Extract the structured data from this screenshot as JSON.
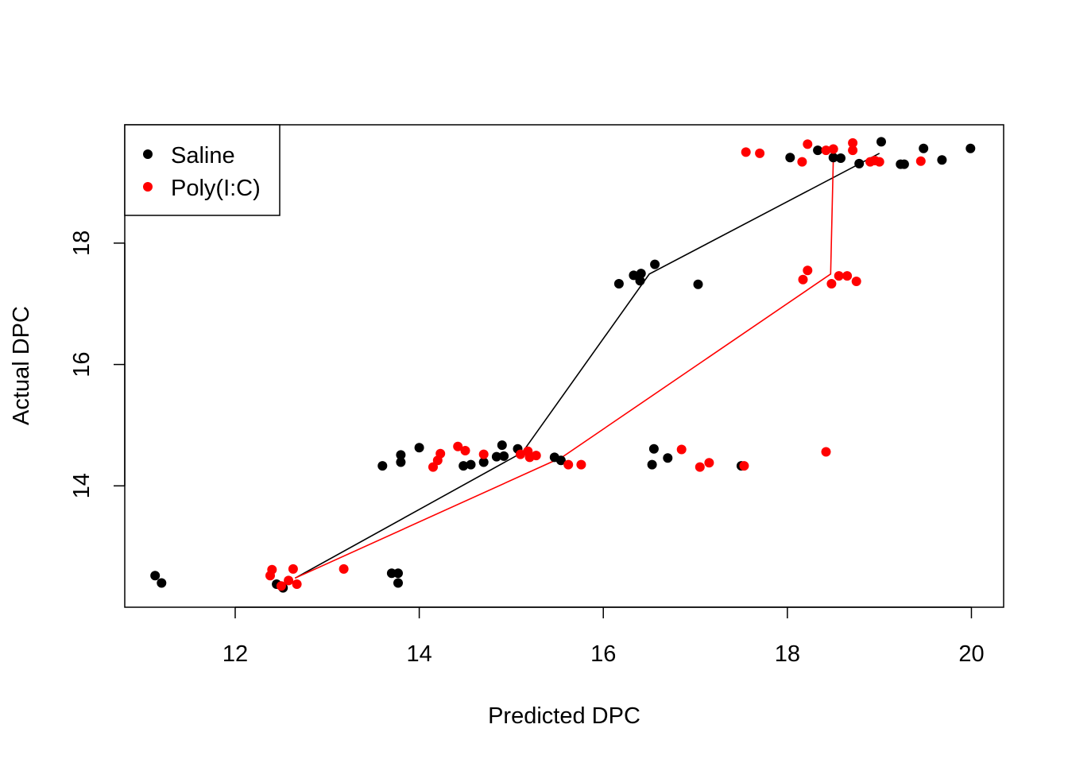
{
  "chart_data": {
    "type": "scatter",
    "title": "",
    "xlabel": "Predicted DPC",
    "ylabel": "Actual DPC",
    "xlim": [
      10.8,
      20.35
    ],
    "ylim": [
      12.0,
      19.95
    ],
    "x_ticks": [
      12,
      14,
      16,
      18,
      20
    ],
    "y_ticks": [
      14,
      16,
      18
    ],
    "grid": false,
    "legend": {
      "position": "top-left",
      "entries": [
        {
          "label": "Saline",
          "color": "#000000"
        },
        {
          "label": "Poly(I:C)",
          "color": "#ff0000"
        }
      ]
    },
    "series": [
      {
        "name": "Saline",
        "color": "#000000",
        "points": [
          [
            11.13,
            12.52
          ],
          [
            11.2,
            12.4
          ],
          [
            12.45,
            12.38
          ],
          [
            12.52,
            12.32
          ],
          [
            13.7,
            12.56
          ],
          [
            13.77,
            12.56
          ],
          [
            13.77,
            12.4
          ],
          [
            13.6,
            14.33
          ],
          [
            13.8,
            14.39
          ],
          [
            13.8,
            14.51
          ],
          [
            14.0,
            14.63
          ],
          [
            14.48,
            14.33
          ],
          [
            14.56,
            14.35
          ],
          [
            14.7,
            14.39
          ],
          [
            14.84,
            14.48
          ],
          [
            14.9,
            14.67
          ],
          [
            14.92,
            14.49
          ],
          [
            15.07,
            14.61
          ],
          [
            15.47,
            14.47
          ],
          [
            15.54,
            14.42
          ],
          [
            16.17,
            17.33
          ],
          [
            16.33,
            17.47
          ],
          [
            16.4,
            17.38
          ],
          [
            16.41,
            17.5
          ],
          [
            16.56,
            17.65
          ],
          [
            17.03,
            17.32
          ],
          [
            16.53,
            14.35
          ],
          [
            16.55,
            14.61
          ],
          [
            16.7,
            14.46
          ],
          [
            17.5,
            14.33
          ],
          [
            18.03,
            19.41
          ],
          [
            18.33,
            19.53
          ],
          [
            18.5,
            19.41
          ],
          [
            18.58,
            19.4
          ],
          [
            18.78,
            19.31
          ],
          [
            19.02,
            19.67
          ],
          [
            19.23,
            19.3
          ],
          [
            19.27,
            19.3
          ],
          [
            19.48,
            19.56
          ],
          [
            19.68,
            19.37
          ],
          [
            19.99,
            19.56
          ]
        ],
        "trend": [
          [
            12.65,
            12.48
          ],
          [
            15.12,
            14.55
          ],
          [
            16.5,
            17.49
          ],
          [
            19.0,
            19.48
          ]
        ]
      },
      {
        "name": "Poly(I:C)",
        "color": "#ff0000",
        "points": [
          [
            12.38,
            12.52
          ],
          [
            12.4,
            12.62
          ],
          [
            12.5,
            12.35
          ],
          [
            12.58,
            12.44
          ],
          [
            12.63,
            12.63
          ],
          [
            12.67,
            12.38
          ],
          [
            13.18,
            12.63
          ],
          [
            14.15,
            14.31
          ],
          [
            14.2,
            14.42
          ],
          [
            14.23,
            14.53
          ],
          [
            14.42,
            14.65
          ],
          [
            14.5,
            14.58
          ],
          [
            14.7,
            14.52
          ],
          [
            15.1,
            14.52
          ],
          [
            15.18,
            14.57
          ],
          [
            15.2,
            14.47
          ],
          [
            15.27,
            14.5
          ],
          [
            15.62,
            14.35
          ],
          [
            15.76,
            14.35
          ],
          [
            16.85,
            14.6
          ],
          [
            17.05,
            14.31
          ],
          [
            17.15,
            14.38
          ],
          [
            17.53,
            14.33
          ],
          [
            18.42,
            14.56
          ],
          [
            18.17,
            17.4
          ],
          [
            18.22,
            17.55
          ],
          [
            18.48,
            17.33
          ],
          [
            18.56,
            17.46
          ],
          [
            18.65,
            17.46
          ],
          [
            18.75,
            17.37
          ],
          [
            17.55,
            19.5
          ],
          [
            17.7,
            19.48
          ],
          [
            18.16,
            19.34
          ],
          [
            18.22,
            19.63
          ],
          [
            18.42,
            19.53
          ],
          [
            18.5,
            19.55
          ],
          [
            18.71,
            19.53
          ],
          [
            18.71,
            19.65
          ],
          [
            18.9,
            19.34
          ],
          [
            18.95,
            19.36
          ],
          [
            19.0,
            19.34
          ],
          [
            19.45,
            19.35
          ]
        ],
        "trend": [
          [
            12.65,
            12.48
          ],
          [
            15.55,
            14.47
          ],
          [
            18.47,
            17.49
          ],
          [
            18.5,
            19.41
          ]
        ]
      }
    ]
  }
}
